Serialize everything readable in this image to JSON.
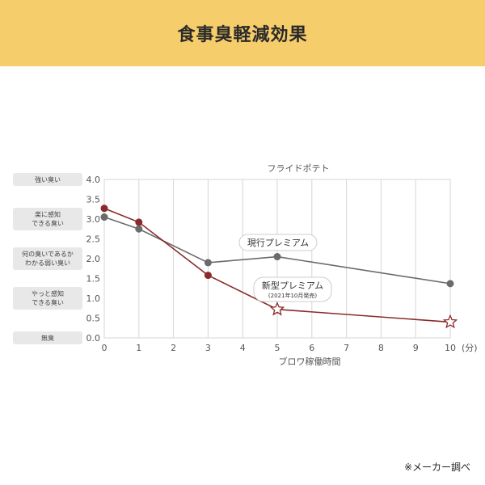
{
  "header": {
    "title": "食事臭軽減効果"
  },
  "footnote": "※メーカー調べ",
  "colors": {
    "banner": "#f6cd6b",
    "current_series": "#6b6b6b",
    "new_series": "#8a2a2a",
    "odor_label_bg": "#e8e8e8",
    "grid": "#d6d6d6"
  },
  "chart_data": {
    "type": "line",
    "title": "フライドポテト",
    "xlabel": "ブロワ稼働時間",
    "x_unit": "(分)",
    "x_ticks": [
      0,
      1,
      2,
      3,
      4,
      5,
      6,
      7,
      8,
      9,
      10
    ],
    "x_tick_labels": [
      "0",
      "1",
      "2",
      "3",
      "4",
      "5",
      "6",
      "7",
      "8",
      "9",
      "10"
    ],
    "y_ticks": [
      0.0,
      0.5,
      1.0,
      1.5,
      2.0,
      2.5,
      3.0,
      3.5,
      4.0
    ],
    "y_tick_labels": [
      "0.0",
      "0.5",
      "1.0",
      "1.5",
      "2.0",
      "2.5",
      "3.0",
      "3.5",
      "4.0"
    ],
    "xlim": [
      0,
      10
    ],
    "ylim": [
      0,
      4
    ],
    "grid": "vertical",
    "odor_levels": [
      {
        "value": 4.0,
        "lines": [
          "強い臭い"
        ]
      },
      {
        "value": 3.0,
        "lines": [
          "楽に感知",
          "できる臭い"
        ]
      },
      {
        "value": 2.0,
        "lines": [
          "何の臭いであるか",
          "わかる弱い臭い"
        ]
      },
      {
        "value": 1.0,
        "lines": [
          "やっと感知",
          "できる臭い"
        ]
      },
      {
        "value": 0.0,
        "lines": [
          "無臭"
        ]
      }
    ],
    "series": [
      {
        "name": "現行プレミアム",
        "marker": "circle",
        "x": [
          0,
          1,
          3,
          5,
          10
        ],
        "y": [
          3.05,
          2.75,
          1.9,
          2.05,
          1.37
        ]
      },
      {
        "name": "新型プレミアム",
        "note": "(2021年10月発売)",
        "marker_first": "circle",
        "marker_last": "star",
        "x": [
          0,
          1,
          3,
          5,
          10
        ],
        "y": [
          3.27,
          2.92,
          1.58,
          0.72,
          0.4
        ]
      }
    ]
  }
}
